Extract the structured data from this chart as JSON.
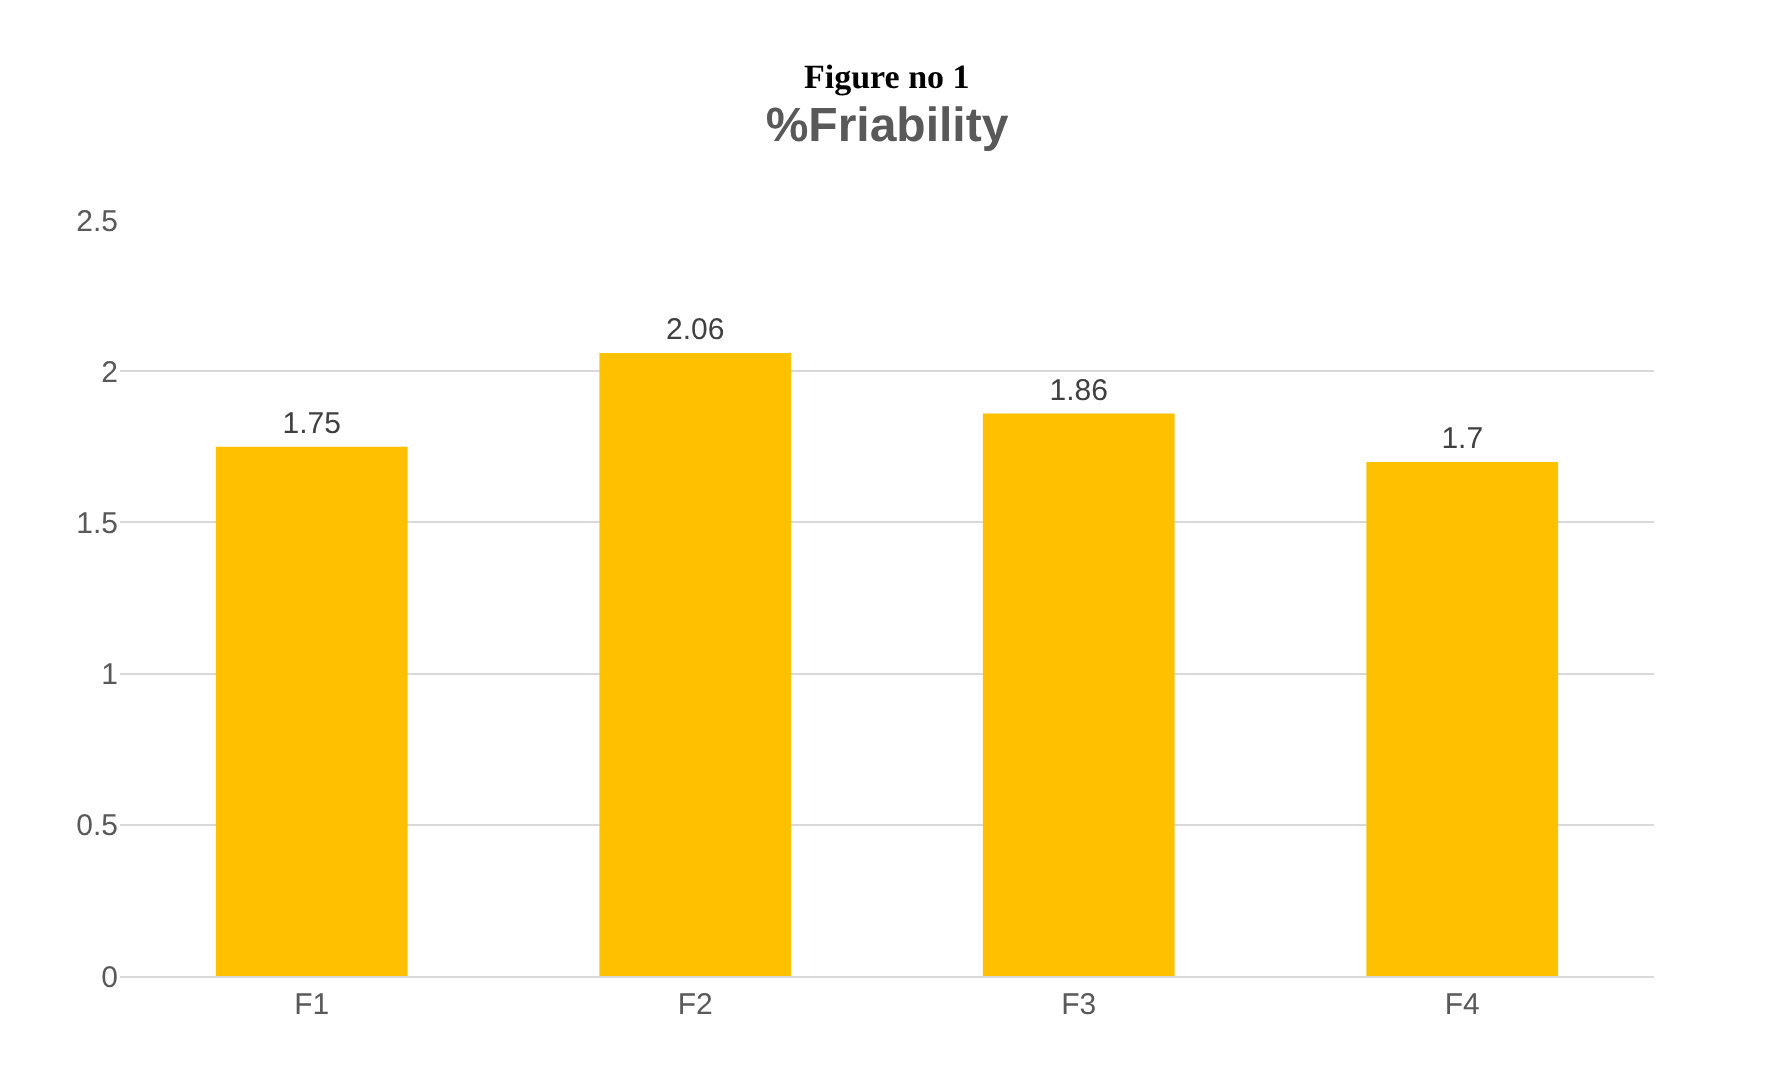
{
  "chart_data": {
    "type": "bar",
    "title": "%Friability",
    "annotations": [
      "Figure no 1"
    ],
    "categories": [
      "F1",
      "F2",
      "F3",
      "F4"
    ],
    "values": [
      1.75,
      2.06,
      1.86,
      1.7
    ],
    "color": "#ffc000",
    "ylim": [
      0,
      2.5
    ],
    "yticks": [
      0,
      0.5,
      1,
      1.5,
      2,
      2.5
    ],
    "grid": "y",
    "data_labels": true
  }
}
